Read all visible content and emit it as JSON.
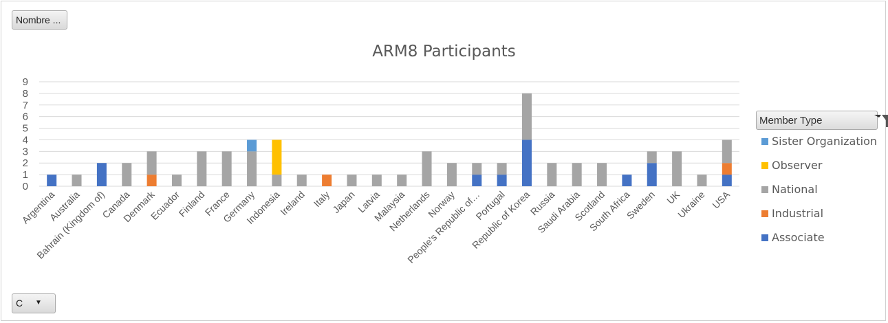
{
  "buttons": {
    "top_field": "Nombre ...",
    "bottom_field": "C",
    "bottom_arrow": "▼"
  },
  "legend": {
    "header": "Member Type",
    "filter_icon": "funnel-filter-icon",
    "items": [
      {
        "label": "Sister Organization",
        "color": "#5b9bd5"
      },
      {
        "label": "Observer",
        "color": "#ffc000"
      },
      {
        "label": "National",
        "color": "#a5a5a5"
      },
      {
        "label": "Industrial",
        "color": "#ed7d31"
      },
      {
        "label": "Associate",
        "color": "#4472c4"
      }
    ]
  },
  "chart_data": {
    "type": "bar",
    "stacked": true,
    "title": "ARM8 Participants",
    "xlabel": "",
    "ylabel": "",
    "ylim": [
      0,
      9
    ],
    "yticks": [
      0,
      1,
      2,
      3,
      4,
      5,
      6,
      7,
      8,
      9
    ],
    "grid": true,
    "legend_position": "right",
    "categories": [
      "Argentina",
      "Australia",
      "Bahrain (Kingdom of)",
      "Canada",
      "Denmark",
      "Ecuador",
      "Finland",
      "France",
      "Germany",
      "Indonesia",
      "Ireland",
      "Italy",
      "Japan",
      "Latvia",
      "Malaysia",
      "Netherlands",
      "Norway",
      "People's Republic of…",
      "Portugal",
      "Republic of Korea",
      "Russia",
      "Saudi Arabia",
      "Scotland",
      "South Africa",
      "Sweden",
      "UK",
      "Ukraine",
      "USA"
    ],
    "series": [
      {
        "name": "Associate",
        "color": "#4472c4",
        "values": [
          1,
          0,
          2,
          0,
          0,
          0,
          0,
          0,
          0,
          0,
          0,
          0,
          0,
          0,
          0,
          0,
          0,
          1,
          1,
          4,
          0,
          0,
          0,
          1,
          2,
          0,
          0,
          1
        ]
      },
      {
        "name": "Industrial",
        "color": "#ed7d31",
        "values": [
          0,
          0,
          0,
          0,
          1,
          0,
          0,
          0,
          0,
          0,
          0,
          1,
          0,
          0,
          0,
          0,
          0,
          0,
          0,
          0,
          0,
          0,
          0,
          0,
          0,
          0,
          0,
          1
        ]
      },
      {
        "name": "National",
        "color": "#a5a5a5",
        "values": [
          0,
          1,
          0,
          2,
          2,
          1,
          3,
          3,
          3,
          1,
          1,
          0,
          1,
          1,
          1,
          3,
          2,
          1,
          1,
          4,
          2,
          2,
          2,
          0,
          1,
          3,
          1,
          2
        ]
      },
      {
        "name": "Observer",
        "color": "#ffc000",
        "values": [
          0,
          0,
          0,
          0,
          0,
          0,
          0,
          0,
          0,
          3,
          0,
          0,
          0,
          0,
          0,
          0,
          0,
          0,
          0,
          0,
          0,
          0,
          0,
          0,
          0,
          0,
          0,
          0
        ]
      },
      {
        "name": "Sister Organization",
        "color": "#5b9bd5",
        "values": [
          0,
          0,
          0,
          0,
          0,
          0,
          0,
          0,
          1,
          0,
          0,
          0,
          0,
          0,
          0,
          0,
          0,
          0,
          0,
          0,
          0,
          0,
          0,
          0,
          0,
          0,
          0,
          0
        ]
      }
    ]
  }
}
